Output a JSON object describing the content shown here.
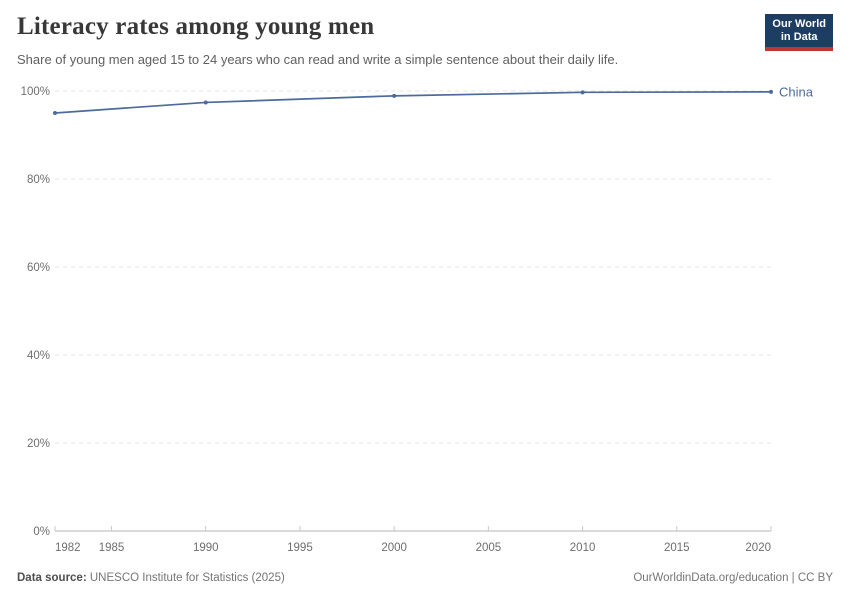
{
  "chart_data": {
    "type": "line",
    "title": "Literacy rates among young men",
    "subtitle": "Share of young men aged 15 to 24 years who can read and write a simple sentence about their daily life.",
    "series": [
      {
        "name": "China",
        "color": "#4C6A9C",
        "points": [
          {
            "x": 1982,
            "y": 95.0
          },
          {
            "x": 1990,
            "y": 97.4
          },
          {
            "x": 2000,
            "y": 98.9
          },
          {
            "x": 2010,
            "y": 99.7
          },
          {
            "x": 2020,
            "y": 99.8
          }
        ]
      }
    ],
    "xlabel": "",
    "ylabel": "",
    "xlim": [
      1982,
      2020
    ],
    "ylim": [
      0,
      100
    ],
    "xticks": [
      1982,
      1985,
      1990,
      1995,
      2000,
      2005,
      2010,
      2015,
      2020
    ],
    "yticks": [
      0,
      20,
      40,
      60,
      80,
      100
    ],
    "ytick_suffix": "%",
    "grid": "horizontal-dashed",
    "legend_position": "line-end"
  },
  "theme": {
    "grid_color": "#e3e3e3",
    "axis_color": "#b5b5b5",
    "tick_color": "#c9c9c9",
    "axis_text_color": "#6e6e6e"
  },
  "branding": {
    "logo": {
      "line1": "Our World",
      "line2": "in Data",
      "bg": "#1d3d63",
      "bar": "#c0362c"
    }
  },
  "footer": {
    "source_label": "Data source:",
    "source_text": "UNESCO Institute for Statistics (2025)",
    "credit": "OurWorldinData.org/education | CC BY"
  }
}
